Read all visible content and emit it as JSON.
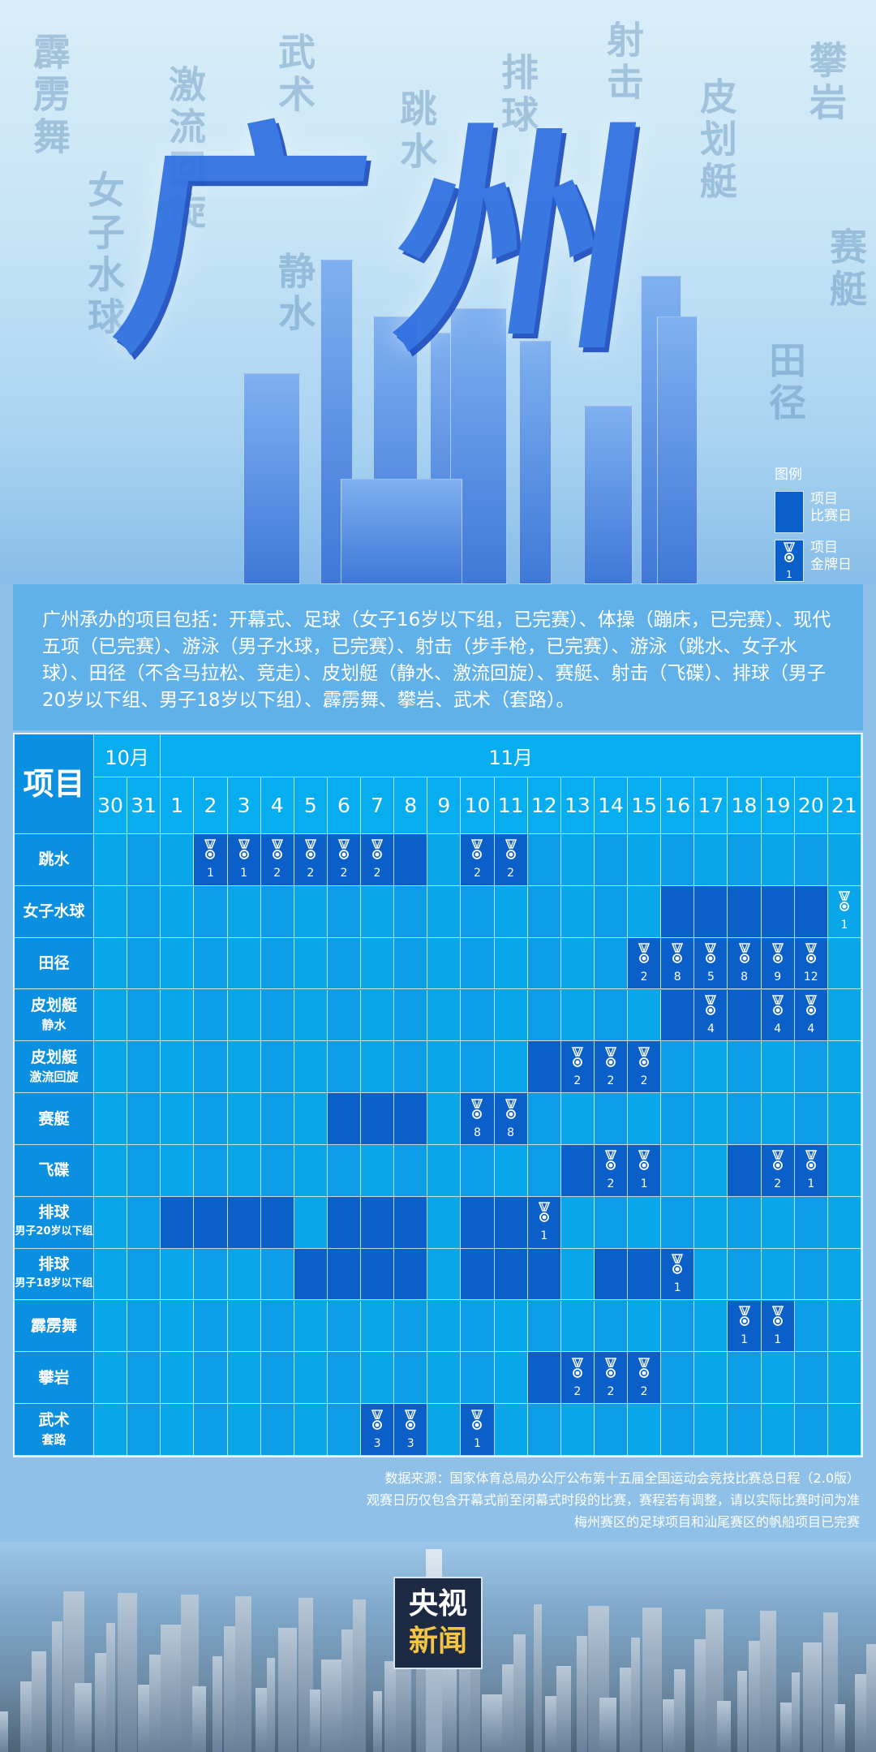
{
  "hero": {
    "title": "广州",
    "background_calligraphy": [
      "霹雳舞",
      "激流回旋",
      "武术",
      "跳水",
      "排球",
      "射击",
      "皮划艇",
      "攀岩",
      "女子水球",
      "静水",
      "赛艇",
      "田径"
    ]
  },
  "legend": {
    "title": "图例",
    "items": [
      {
        "label": "项目比赛日",
        "line1": "项目",
        "line2": "比赛日",
        "color": "#0a5fc8"
      },
      {
        "label": "项目金牌日",
        "line1": "项目",
        "line2": "金牌日",
        "medals": "1",
        "icon": "medal-icon"
      }
    ]
  },
  "intro": "广州承办的项目包括：开幕式、足球（女子16岁以下组，已完赛）、体操（蹦床，已完赛）、现代五项（已完赛）、游泳（男子水球，已完赛）、射击（步手枪，已完赛）、游泳（跳水、女子水球）、田径（不含马拉松、竞走）、皮划艇（静水、激流回旋）、赛艇、射击（飞碟）、排球（男子20岁以下组、男子18岁以下组）、霹雳舞、攀岩、武术（套路）。",
  "table": {
    "corner": "项目",
    "months": [
      {
        "label": "10月",
        "days": [
          "30",
          "31"
        ]
      },
      {
        "label": "11月",
        "days": [
          "1",
          "2",
          "3",
          "4",
          "5",
          "6",
          "7",
          "8",
          "9",
          "10",
          "11",
          "12",
          "13",
          "14",
          "15",
          "16",
          "17",
          "18",
          "19",
          "20",
          "21"
        ]
      }
    ],
    "colors": {
      "match_day": "#0a5fc8",
      "normal": "#0aa6ea",
      "label": "#0b8fe0"
    },
    "rows": [
      {
        "event": [
          "跳水"
        ],
        "match_days": [
          "8"
        ],
        "gold_days": {
          "2": "1",
          "3": "1",
          "4": "2",
          "5": "2",
          "6": "2",
          "7": "2",
          "10": "2",
          "11": "2"
        }
      },
      {
        "event": [
          "女子水球"
        ],
        "match_days": [
          "16",
          "17",
          "18",
          "19",
          "20"
        ],
        "gold_days": {
          "21": "1"
        }
      },
      {
        "event": [
          "田径"
        ],
        "match_days": [],
        "gold_days": {
          "15": "2",
          "16": "8",
          "17": "5",
          "18": "8",
          "19": "9",
          "20": "12"
        }
      },
      {
        "event": [
          "皮划艇",
          "静水"
        ],
        "match_days": [
          "16",
          "18"
        ],
        "gold_days": {
          "17": "4",
          "19": "4",
          "20": "4"
        }
      },
      {
        "event": [
          "皮划艇",
          "激流回旋"
        ],
        "match_days": [
          "12"
        ],
        "gold_days": {
          "13": "2",
          "14": "2",
          "15": "2"
        }
      },
      {
        "event": [
          "赛艇"
        ],
        "match_days": [
          "6",
          "7",
          "8"
        ],
        "gold_days": {
          "10": "8",
          "11": "8"
        }
      },
      {
        "event": [
          "飞碟"
        ],
        "match_days": [
          "13",
          "18"
        ],
        "gold_days": {
          "14": "2",
          "15": "1",
          "19": "2",
          "20": "1"
        }
      },
      {
        "event": [
          "排球",
          "男子20岁以下组"
        ],
        "match_days": [
          "1",
          "2",
          "3",
          "4",
          "6",
          "7",
          "8",
          "10",
          "11"
        ],
        "gold_days": {
          "12": "1"
        }
      },
      {
        "event": [
          "排球",
          "男子18岁以下组"
        ],
        "match_days": [
          "5",
          "6",
          "7",
          "8",
          "10",
          "11",
          "12",
          "14",
          "15"
        ],
        "gold_days": {
          "16": "1"
        }
      },
      {
        "event": [
          "霹雳舞"
        ],
        "match_days": [],
        "gold_days": {
          "18": "1",
          "19": "1"
        }
      },
      {
        "event": [
          "攀岩"
        ],
        "match_days": [
          "12"
        ],
        "gold_days": {
          "13": "2",
          "14": "2",
          "15": "2"
        }
      },
      {
        "event": [
          "武术",
          "套路"
        ],
        "match_days": [],
        "gold_days": {
          "7": "3",
          "8": "3",
          "10": "1"
        }
      }
    ]
  },
  "notes": [
    "数据来源：国家体育总局办公厅公布第十五届全国运动会竞技比赛总日程（2.0版）",
    "观赛日历仅包含开幕式前至闭幕式时段的比赛，赛程若有调整，请以实际比赛时间为准",
    "梅州赛区的足球项目和汕尾赛区的帆船项目已完赛"
  ],
  "logo": {
    "line1": "央视",
    "line2": "新闻"
  }
}
